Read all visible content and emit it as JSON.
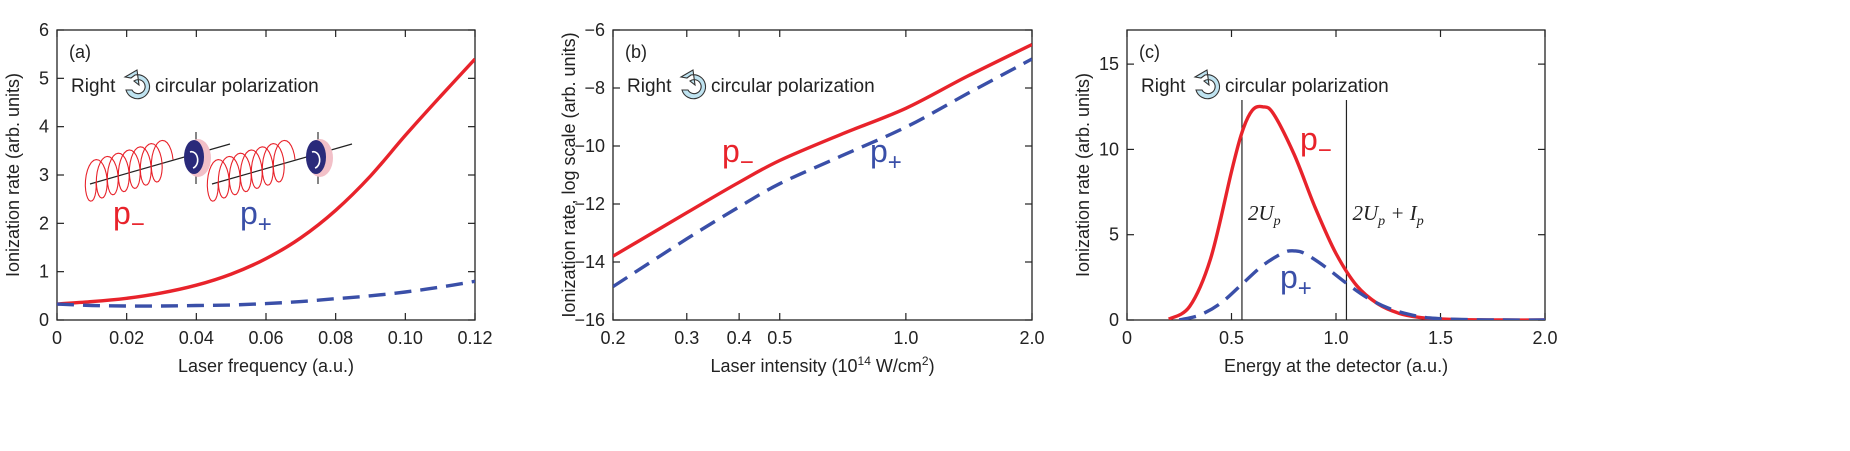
{
  "chart_data": [
    {
      "type": "line",
      "panel_label": "(a)",
      "xlabel": "Laser frequency (a.u.)",
      "ylabel": "Ionization rate (arb. units)",
      "xlim": [
        0,
        0.12
      ],
      "ylim": [
        0,
        6
      ],
      "xticks": [
        0,
        0.02,
        0.04,
        0.06,
        0.08,
        0.1,
        0.12
      ],
      "xtick_labels": [
        "0",
        "0.02",
        "0.04",
        "0.06",
        "0.08",
        "0.10",
        "0.12"
      ],
      "yticks": [
        0,
        1,
        2,
        3,
        4,
        5,
        6
      ],
      "ytick_labels": [
        "0",
        "1",
        "2",
        "3",
        "4",
        "5",
        "6"
      ],
      "annotation": {
        "left": "Right",
        "right": "circular polarization"
      },
      "series": [
        {
          "name": "p₋",
          "color": "#e8232b",
          "style": "solid",
          "x": [
            0,
            0.01,
            0.02,
            0.03,
            0.04,
            0.05,
            0.06,
            0.07,
            0.08,
            0.09,
            0.1,
            0.11,
            0.12
          ],
          "y": [
            0.33,
            0.38,
            0.45,
            0.56,
            0.72,
            0.95,
            1.27,
            1.7,
            2.27,
            2.98,
            3.82,
            4.62,
            5.4
          ]
        },
        {
          "name": "p₊",
          "color": "#3a4fa8",
          "style": "dashed",
          "x": [
            0,
            0.01,
            0.02,
            0.03,
            0.04,
            0.05,
            0.06,
            0.07,
            0.08,
            0.09,
            0.1,
            0.11,
            0.12
          ],
          "y": [
            0.33,
            0.3,
            0.29,
            0.29,
            0.3,
            0.31,
            0.34,
            0.38,
            0.44,
            0.5,
            0.58,
            0.68,
            0.8
          ]
        }
      ],
      "labels": {
        "minus": "p",
        "minus_sub": "−",
        "plus": "p",
        "plus_sub": "+"
      }
    },
    {
      "type": "line",
      "panel_label": "(b)",
      "xlabel": "Laser intensity (10",
      "xlabel_sup": "14",
      "xlabel_tail": " W/cm",
      "xlabel_sup2": "2",
      "xlabel_end": ")",
      "ylabel": "Ionization rate, log scale (arb. units)",
      "x_scale": "log",
      "xlim": [
        0.2,
        2.0
      ],
      "ylim": [
        -16,
        -6
      ],
      "xticks": [
        0.2,
        0.3,
        0.4,
        0.5,
        1.0,
        2.0
      ],
      "xtick_labels": [
        "0.2",
        "0.3",
        "0.4",
        "0.5",
        "1.0",
        "2.0"
      ],
      "yticks": [
        -16,
        -14,
        -12,
        -10,
        -8,
        -6
      ],
      "ytick_labels": [
        "−16",
        "−14",
        "−12",
        "−10",
        "−8",
        "−6"
      ],
      "annotation": {
        "left": "Right",
        "right": "circular polarization"
      },
      "series": [
        {
          "name": "p₋",
          "color": "#e8232b",
          "style": "solid",
          "x": [
            0.2,
            0.3,
            0.4,
            0.5,
            0.7,
            1.0,
            1.4,
            2.0
          ],
          "y": [
            -13.8,
            -12.3,
            -11.25,
            -10.5,
            -9.6,
            -8.7,
            -7.6,
            -6.5
          ]
        },
        {
          "name": "p₊",
          "color": "#3a4fa8",
          "style": "dashed",
          "x": [
            0.2,
            0.3,
            0.4,
            0.5,
            0.7,
            1.0,
            1.4,
            2.0
          ],
          "y": [
            -14.85,
            -13.2,
            -12.1,
            -11.3,
            -10.35,
            -9.35,
            -8.2,
            -7.0
          ]
        }
      ],
      "labels": {
        "minus": "p",
        "minus_sub": "−",
        "plus": "p",
        "plus_sub": "+"
      }
    },
    {
      "type": "line",
      "panel_label": "(c)",
      "xlabel": "Energy at the detector (a.u.)",
      "ylabel": "Ionization rate (arb. units)",
      "xlim": [
        0,
        2.0
      ],
      "ylim": [
        0,
        17
      ],
      "xticks": [
        0,
        0.5,
        1.0,
        1.5,
        2.0
      ],
      "xtick_labels": [
        "0",
        "0.5",
        "1.0",
        "1.5",
        "2.0"
      ],
      "yticks": [
        0,
        5,
        10,
        15
      ],
      "ytick_labels": [
        "0",
        "5",
        "10",
        "15"
      ],
      "annotation": {
        "left": "Right",
        "right": "circular polarization"
      },
      "vlines": [
        {
          "x": 0.55,
          "label": "2U",
          "sub": "p",
          "tail": ""
        },
        {
          "x": 1.05,
          "label": "2U",
          "sub": "p",
          "tail": " + I",
          "tail_sub": "p"
        }
      ],
      "series": [
        {
          "name": "p₋",
          "color": "#e8232b",
          "style": "solid",
          "x": [
            0.2,
            0.3,
            0.4,
            0.5,
            0.55,
            0.6,
            0.65,
            0.7,
            0.8,
            0.9,
            1.0,
            1.1,
            1.2,
            1.3,
            1.4,
            1.5,
            1.6,
            1.8,
            2.0
          ],
          "y": [
            0.05,
            0.8,
            3.6,
            8.7,
            11.0,
            12.3,
            12.5,
            12.1,
            9.7,
            6.6,
            3.9,
            2.0,
            0.95,
            0.4,
            0.15,
            0.06,
            0.02,
            0.0,
            0.0
          ]
        },
        {
          "name": "p₊",
          "color": "#3a4fa8",
          "style": "dashed",
          "x": [
            0.25,
            0.35,
            0.45,
            0.55,
            0.65,
            0.75,
            0.8,
            0.85,
            0.95,
            1.05,
            1.15,
            1.25,
            1.35,
            1.45,
            1.6,
            1.8,
            2.0
          ],
          "y": [
            0.0,
            0.3,
            1.0,
            2.1,
            3.2,
            3.95,
            4.05,
            3.9,
            3.1,
            2.15,
            1.3,
            0.7,
            0.33,
            0.12,
            0.03,
            0.0,
            0.0
          ]
        }
      ],
      "labels": {
        "minus": "p",
        "minus_sub": "−",
        "plus": "p",
        "plus_sub": "+"
      }
    }
  ]
}
